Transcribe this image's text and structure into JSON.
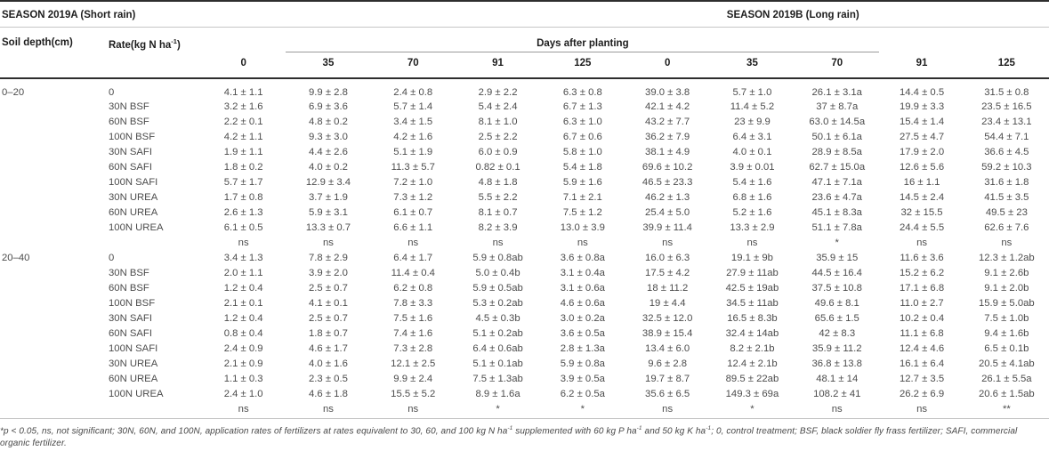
{
  "table": {
    "season_a": "SEASON 2019A (Short rain)",
    "season_b": "SEASON 2019B (Long rain)",
    "col_soil": "Soil depth(cm)",
    "col_rate_prefix": "Rate(kg N ha",
    "col_rate_sup": "-1",
    "col_rate_suffix": ")",
    "days_header": "Days after planting",
    "day_cols": [
      "0",
      "35",
      "70",
      "91",
      "125",
      "0",
      "35",
      "70",
      "91",
      "125"
    ],
    "sections": [
      {
        "depth": "0–20",
        "rows": [
          {
            "rate": "0",
            "values": [
              "4.1 ± 1.1",
              "9.9 ± 2.8",
              "2.4 ± 0.8",
              "2.9 ± 2.2",
              "6.3 ± 0.8",
              "39.0 ± 3.8",
              "5.7 ± 1.0",
              "26.1 ± 3.1a",
              "14.4 ± 0.5",
              "31.5 ± 0.8"
            ]
          },
          {
            "rate": "30N BSF",
            "values": [
              "3.2 ± 1.6",
              "6.9 ± 3.6",
              "5.7 ± 1.4",
              "5.4 ± 2.4",
              "6.7 ± 1.3",
              "42.1 ± 4.2",
              "11.4 ± 5.2",
              "37 ± 8.7a",
              "19.9 ± 3.3",
              "23.5 ± 16.5"
            ]
          },
          {
            "rate": "60N BSF",
            "values": [
              "2.2 ± 0.1",
              "4.8 ± 0.2",
              "3.4 ± 1.5",
              "8.1 ± 1.0",
              "6.3 ± 1.0",
              "43.2 ± 7.7",
              "23 ± 9.9",
              "63.0 ± 14.5a",
              "15.4 ± 1.4",
              "23.4 ± 13.1"
            ]
          },
          {
            "rate": "100N BSF",
            "values": [
              "4.2 ± 1.1",
              "9.3 ± 3.0",
              "4.2 ± 1.6",
              "2.5 ± 2.2",
              "6.7 ± 0.6",
              "36.2 ± 7.9",
              "6.4 ± 3.1",
              "50.1 ± 6.1a",
              "27.5 ± 4.7",
              "54.4 ± 7.1"
            ]
          },
          {
            "rate": "30N SAFI",
            "values": [
              "1.9 ± 1.1",
              "4.4 ± 2.6",
              "5.1 ± 1.9",
              "6.0 ± 0.9",
              "5.8 ± 1.0",
              "38.1 ± 4.9",
              "4.0 ± 0.1",
              "28.9 ± 8.5a",
              "17.9 ± 2.0",
              "36.6 ± 4.5"
            ]
          },
          {
            "rate": "60N SAFI",
            "values": [
              "1.8 ± 0.2",
              "4.0 ± 0.2",
              "11.3 ± 5.7",
              "0.82 ± 0.1",
              "5.4 ± 1.8",
              "69.6 ± 10.2",
              "3.9 ± 0.01",
              "62.7 ± 15.0a",
              "12.6 ± 5.6",
              "59.2 ± 10.3"
            ]
          },
          {
            "rate": "100N SAFI",
            "values": [
              "5.7 ± 1.7",
              "12.9 ± 3.4",
              "7.2 ± 1.0",
              "4.8 ± 1.8",
              "5.9 ± 1.6",
              "46.5 ± 23.3",
              "5.4 ± 1.6",
              "47.1 ± 7.1a",
              "16 ± 1.1",
              "31.6 ± 1.8"
            ]
          },
          {
            "rate": "30N UREA",
            "values": [
              "1.7 ± 0.8",
              "3.7 ± 1.9",
              "7.3 ± 1.2",
              "5.5 ± 2.2",
              "7.1 ± 2.1",
              "46.2 ± 1.3",
              "6.8 ± 1.6",
              "23.6 ± 4.7a",
              "14.5 ± 2.4",
              "41.5 ± 3.5"
            ]
          },
          {
            "rate": "60N UREA",
            "values": [
              "2.6 ± 1.3",
              "5.9 ± 3.1",
              "6.1 ± 0.7",
              "8.1 ± 0.7",
              "7.5 ± 1.2",
              "25.4 ± 5.0",
              "5.2 ± 1.6",
              "45.1 ± 8.3a",
              "32 ± 15.5",
              "49.5 ± 23"
            ]
          },
          {
            "rate": "100N UREA",
            "values": [
              "6.1 ± 0.5",
              "13.3 ± 0.7",
              "6.6 ± 1.1",
              "8.2 ± 3.9",
              "13.0 ± 3.9",
              "39.9 ± 11.4",
              "13.3 ± 2.9",
              "51.1 ± 7.8a",
              "24.4 ± 5.5",
              "62.6 ± 7.6"
            ]
          }
        ],
        "sig": [
          "ns",
          "ns",
          "ns",
          "ns",
          "ns",
          "ns",
          "ns",
          "*",
          "ns",
          "ns"
        ]
      },
      {
        "depth": "20–40",
        "rows": [
          {
            "rate": "0",
            "values": [
              "3.4 ± 1.3",
              "7.8 ± 2.9",
              "6.4 ± 1.7",
              "5.9 ± 0.8ab",
              "3.6 ± 0.8a",
              "16.0 ± 6.3",
              "19.1 ± 9b",
              "35.9 ± 15",
              "11.6 ± 3.6",
              "12.3 ± 1.2ab"
            ]
          },
          {
            "rate": "30N BSF",
            "values": [
              "2.0 ± 1.1",
              "3.9 ± 2.0",
              "11.4 ± 0.4",
              "5.0 ± 0.4b",
              "3.1 ± 0.4a",
              "17.5 ± 4.2",
              "27.9 ± 11ab",
              "44.5 ± 16.4",
              "15.2 ± 6.2",
              "9.1 ± 2.6b"
            ]
          },
          {
            "rate": "60N BSF",
            "values": [
              "1.2 ± 0.4",
              "2.5 ± 0.7",
              "6.2 ± 0.8",
              "5.9 ± 0.5ab",
              "3.1 ± 0.6a",
              "18 ± 11.2",
              "42.5 ± 19ab",
              "37.5 ± 10.8",
              "17.1 ± 6.8",
              "9.1 ± 2.0b"
            ]
          },
          {
            "rate": "100N BSF",
            "values": [
              "2.1 ± 0.1",
              "4.1 ± 0.1",
              "7.8 ± 3.3",
              "5.3 ± 0.2ab",
              "4.6 ± 0.6a",
              "19 ± 4.4",
              "34.5 ± 11ab",
              "49.6 ± 8.1",
              "11.0 ± 2.7",
              "15.9 ± 5.0ab"
            ]
          },
          {
            "rate": "30N SAFI",
            "values": [
              "1.2 ± 0.4",
              "2.5 ± 0.7",
              "7.5 ± 1.6",
              "4.5 ± 0.3b",
              "3.0 ± 0.2a",
              "32.5 ± 12.0",
              "16.5 ± 8.3b",
              "65.6 ± 1.5",
              "10.2 ± 0.4",
              "7.5 ± 1.0b"
            ]
          },
          {
            "rate": "60N SAFI",
            "values": [
              "0.8 ± 0.4",
              "1.8 ± 0.7",
              "7.4 ± 1.6",
              "5.1 ± 0.2ab",
              "3.6 ± 0.5a",
              "38.9 ± 15.4",
              "32.4 ± 14ab",
              "42 ± 8.3",
              "11.1 ± 6.8",
              "9.4 ± 1.6b"
            ]
          },
          {
            "rate": "100N SAFI",
            "values": [
              "2.4 ± 0.9",
              "4.6 ± 1.7",
              "7.3 ± 2.8",
              "6.4 ± 0.6ab",
              "2.8 ± 1.3a",
              "13.4 ± 6.0",
              "8.2 ± 2.1b",
              "35.9 ± 11.2",
              "12.4 ± 4.6",
              "6.5 ± 0.1b"
            ]
          },
          {
            "rate": "30N UREA",
            "values": [
              "2.1 ± 0.9",
              "4.0 ± 1.6",
              "12.1 ± 2.5",
              "5.1 ± 0.1ab",
              "5.9 ± 0.8a",
              "9.6 ± 2.8",
              "12.4 ± 2.1b",
              "36.8 ± 13.8",
              "16.1 ± 6.4",
              "20.5 ± 4.1ab"
            ]
          },
          {
            "rate": "60N UREA",
            "values": [
              "1.1 ± 0.3",
              "2.3 ± 0.5",
              "9.9 ± 2.4",
              "7.5 ± 1.3ab",
              "3.9 ± 0.5a",
              "19.7 ± 8.7",
              "89.5 ± 22ab",
              "48.1 ± 14",
              "12.7 ± 3.5",
              "26.1 ± 5.5a"
            ]
          },
          {
            "rate": "100N UREA",
            "values": [
              "2.4 ± 1.0",
              "4.6 ± 1.8",
              "15.5 ± 5.2",
              "8.9 ± 1.6a",
              "6.2 ± 0.5a",
              "35.6 ± 6.5",
              "149.3 ± 69a",
              "108.2 ± 41",
              "26.2 ± 6.9",
              "20.6 ± 1.5ab"
            ]
          }
        ],
        "sig": [
          "ns",
          "ns",
          "ns",
          "*",
          "*",
          "ns",
          "*",
          "ns",
          "ns",
          "**"
        ]
      }
    ]
  },
  "footnote_segments": [
    {
      "t": "*p < 0.05, ns, not significant; 30N, 60N, and 100N, application rates of fertilizers at rates equivalent to 30, 60, and 100 kg N ha"
    },
    {
      "sup": "-1"
    },
    {
      "t": " supplemented with 60 kg P ha"
    },
    {
      "sup": "-1"
    },
    {
      "t": " and 50 kg K ha"
    },
    {
      "sup": "-1"
    },
    {
      "t": "; 0, control treatment; BSF, black soldier fly frass fertilizer; SAFI, commercial organic fertilizer."
    }
  ]
}
